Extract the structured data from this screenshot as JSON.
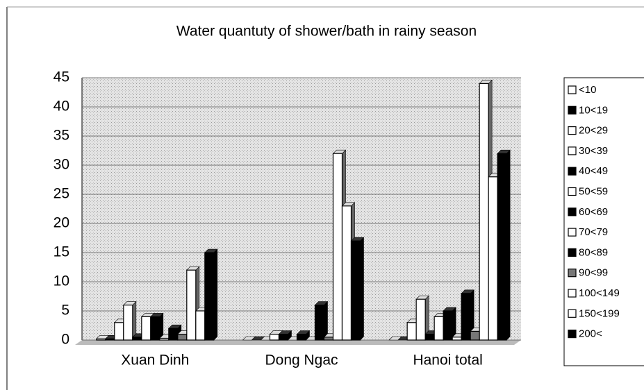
{
  "chart_data": {
    "type": "bar",
    "title": "Water quantuty of shower/bath in rainy season",
    "categories": [
      "Xuan Dinh",
      "Dong Ngac",
      "Hanoi total"
    ],
    "ylim": [
      0,
      45
    ],
    "yticks": [
      0,
      5,
      10,
      15,
      20,
      25,
      30,
      35,
      40,
      45
    ],
    "grid": true,
    "legend": "right",
    "series": [
      {
        "name": "<10",
        "color": "#ffffff",
        "values": [
          0.2,
          0,
          0
        ]
      },
      {
        "name": "10<19",
        "color": "#000000",
        "values": [
          0.2,
          0,
          0
        ]
      },
      {
        "name": "20<29",
        "color": "#ffffff",
        "values": [
          3,
          0,
          3
        ]
      },
      {
        "name": "30<39",
        "color": "#ffffff",
        "values": [
          6,
          1,
          7
        ]
      },
      {
        "name": "40<49",
        "color": "#000000",
        "values": [
          0.5,
          1,
          1
        ]
      },
      {
        "name": "50<59",
        "color": "#ffffff",
        "values": [
          4,
          0,
          4
        ]
      },
      {
        "name": "60<69",
        "color": "#000000",
        "values": [
          4,
          1,
          5
        ]
      },
      {
        "name": "70<79",
        "color": "#ffffff",
        "values": [
          0.3,
          0,
          0.5
        ]
      },
      {
        "name": "80<89",
        "color": "#000000",
        "values": [
          2,
          6,
          8
        ]
      },
      {
        "name": "90<99",
        "color": "#777777",
        "values": [
          1,
          0.5,
          1.5
        ]
      },
      {
        "name": "100<149",
        "color": "#ffffff",
        "values": [
          12,
          32,
          44
        ]
      },
      {
        "name": "150<199",
        "color": "#ffffff",
        "values": [
          5,
          23,
          28
        ]
      },
      {
        "name": "200<",
        "color": "#000000",
        "values": [
          15,
          17,
          32
        ]
      }
    ]
  }
}
